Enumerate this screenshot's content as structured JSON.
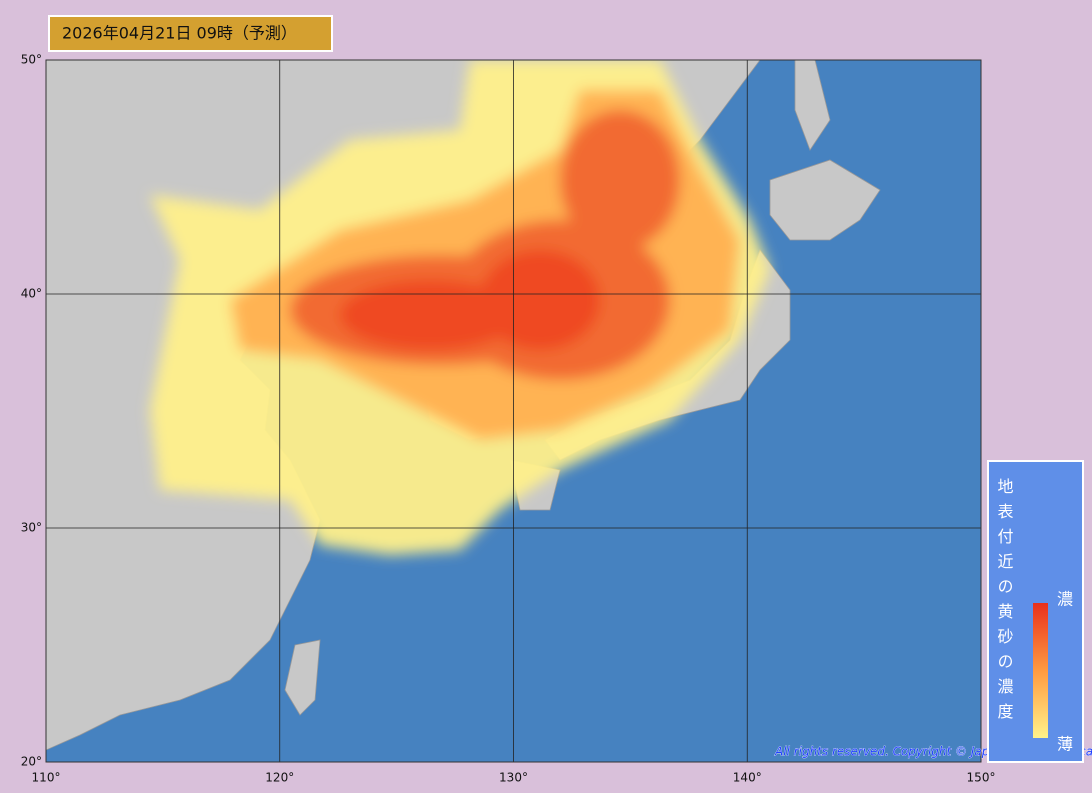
{
  "header": {
    "title": "2026年04月21日 09時（予測）"
  },
  "map": {
    "lat_range": [
      20,
      50
    ],
    "lon_range": [
      110,
      150
    ],
    "lat_ticks": [
      {
        "value": 50,
        "label": "50°"
      },
      {
        "value": 40,
        "label": "40°"
      },
      {
        "value": 30,
        "label": "30°"
      },
      {
        "value": 20,
        "label": "20°"
      }
    ],
    "lon_ticks": [
      {
        "value": 110,
        "label": "110°"
      },
      {
        "value": 120,
        "label": "120°"
      },
      {
        "value": 130,
        "label": "130°"
      },
      {
        "value": 140,
        "label": "140°"
      },
      {
        "value": 150,
        "label": "150°"
      }
    ]
  },
  "legend": {
    "title": "地表付近の黄砂の濃度",
    "high": "濃",
    "low": "薄"
  },
  "copyright": "All rights reserved. Copyright © Japan Meteorological Agency"
}
